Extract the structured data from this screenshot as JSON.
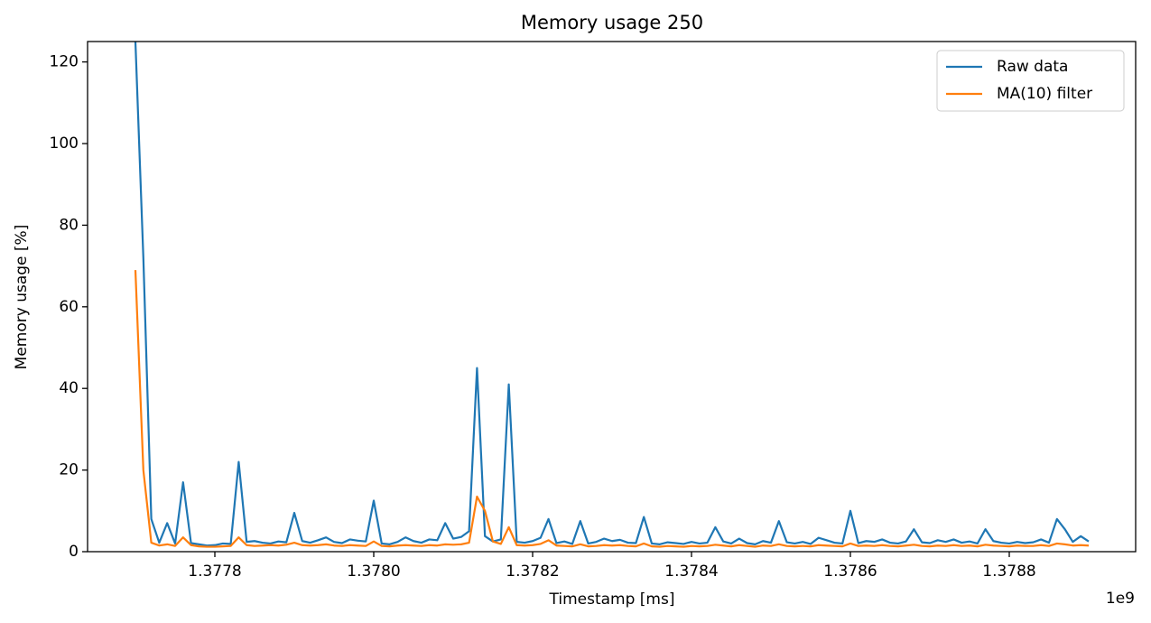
{
  "chart_data": {
    "type": "line",
    "title": "Memory usage 250",
    "xlabel": "Timestamp [ms]",
    "ylabel": "Memory usage [%]",
    "x_offset_label": "1e9",
    "x": [
      1377700000,
      1377710000,
      1377720000,
      1377730000,
      1377740000,
      1377750000,
      1377760000,
      1377770000,
      1377780000,
      1377790000,
      1377800000,
      1377810000,
      1377820000,
      1377830000,
      1377840000,
      1377850000,
      1377860000,
      1377870000,
      1377880000,
      1377890000,
      1377900000,
      1377910000,
      1377920000,
      1377930000,
      1377940000,
      1377950000,
      1377960000,
      1377970000,
      1377980000,
      1377990000,
      1378000000,
      1378010000,
      1378020000,
      1378030000,
      1378040000,
      1378050000,
      1378060000,
      1378070000,
      1378080000,
      1378090000,
      1378100000,
      1378110000,
      1378120000,
      1378130000,
      1378140000,
      1378150000,
      1378160000,
      1378170000,
      1378180000,
      1378190000,
      1378200000,
      1378210000,
      1378220000,
      1378230000,
      1378240000,
      1378250000,
      1378260000,
      1378270000,
      1378280000,
      1378290000,
      1378300000,
      1378310000,
      1378320000,
      1378330000,
      1378340000,
      1378350000,
      1378360000,
      1378370000,
      1378380000,
      1378390000,
      1378400000,
      1378410000,
      1378420000,
      1378430000,
      1378440000,
      1378450000,
      1378460000,
      1378470000,
      1378480000,
      1378490000,
      1378500000,
      1378510000,
      1378520000,
      1378530000,
      1378540000,
      1378550000,
      1378560000,
      1378570000,
      1378580000,
      1378590000,
      1378600000,
      1378610000,
      1378620000,
      1378630000,
      1378640000,
      1378650000,
      1378660000,
      1378670000,
      1378680000,
      1378690000,
      1378700000,
      1378710000,
      1378720000,
      1378730000,
      1378740000,
      1378750000,
      1378760000,
      1378770000,
      1378780000,
      1378790000,
      1378800000,
      1378810000,
      1378820000,
      1378830000,
      1378840000,
      1378850000,
      1378860000,
      1378870000,
      1378880000,
      1378890000,
      1378900000
    ],
    "series": [
      {
        "name": "Raw data",
        "color": "#1f77b4",
        "values": [
          125,
          72,
          8,
          2.2,
          7,
          2.0,
          17,
          2.1,
          1.8,
          1.5,
          1.6,
          2.0,
          1.9,
          22,
          2.4,
          2.6,
          2.2,
          2.0,
          2.5,
          2.3,
          9.5,
          2.6,
          2.2,
          2.8,
          3.5,
          2.4,
          2.1,
          3.0,
          2.7,
          2.5,
          12.5,
          2.0,
          1.8,
          2.4,
          3.5,
          2.6,
          2.2,
          3.0,
          2.8,
          7,
          3.2,
          3.6,
          5,
          45,
          3.8,
          2.5,
          3.0,
          41,
          2.4,
          2.2,
          2.6,
          3.4,
          8,
          2.1,
          2.5,
          1.9,
          7.5,
          2.0,
          2.4,
          3.2,
          2.6,
          2.9,
          2.2,
          2.1,
          8.5,
          2.0,
          1.8,
          2.3,
          2.1,
          1.9,
          2.4,
          2.0,
          2.2,
          6,
          2.5,
          2.0,
          3.2,
          2.1,
          1.8,
          2.6,
          2.2,
          7.5,
          2.3,
          2.0,
          2.4,
          1.9,
          3.4,
          2.8,
          2.2,
          2.0,
          10,
          2.1,
          2.6,
          2.4,
          3.0,
          2.2,
          2.0,
          2.5,
          5.5,
          2.3,
          2.1,
          2.8,
          2.4,
          3.0,
          2.2,
          2.5,
          2.0,
          5.5,
          2.6,
          2.2,
          2.0,
          2.4,
          2.1,
          2.3,
          3.0,
          2.2,
          8,
          5.5,
          2.4,
          3.8,
          2.5
        ]
      },
      {
        "name": "MA(10) filter",
        "color": "#ff7f0e",
        "values": [
          69,
          20,
          2.2,
          1.5,
          1.8,
          1.4,
          3.5,
          1.6,
          1.3,
          1.2,
          1.2,
          1.3,
          1.4,
          3.5,
          1.6,
          1.4,
          1.5,
          1.6,
          1.5,
          1.7,
          2.2,
          1.6,
          1.5,
          1.6,
          1.8,
          1.5,
          1.4,
          1.6,
          1.5,
          1.4,
          2.5,
          1.4,
          1.3,
          1.5,
          1.6,
          1.5,
          1.4,
          1.6,
          1.5,
          1.8,
          1.7,
          1.8,
          2.2,
          13.5,
          10,
          2.5,
          1.9,
          6,
          1.6,
          1.5,
          1.6,
          1.9,
          2.8,
          1.5,
          1.4,
          1.3,
          1.8,
          1.3,
          1.4,
          1.6,
          1.5,
          1.6,
          1.4,
          1.3,
          2,
          1.3,
          1.2,
          1.4,
          1.3,
          1.2,
          1.4,
          1.3,
          1.4,
          1.7,
          1.5,
          1.3,
          1.6,
          1.4,
          1.2,
          1.5,
          1.4,
          1.8,
          1.4,
          1.3,
          1.4,
          1.3,
          1.6,
          1.5,
          1.4,
          1.3,
          2.0,
          1.4,
          1.5,
          1.4,
          1.6,
          1.4,
          1.3,
          1.5,
          1.7,
          1.4,
          1.3,
          1.5,
          1.4,
          1.6,
          1.4,
          1.5,
          1.3,
          1.7,
          1.5,
          1.4,
          1.3,
          1.5,
          1.4,
          1.4,
          1.6,
          1.4,
          2.0,
          1.8,
          1.5,
          1.6,
          1.5
        ]
      }
    ],
    "xlim": [
      1377639773,
      1378959091
    ],
    "ylim": [
      0,
      125
    ],
    "xticks": [
      {
        "value": 1377800000,
        "label": "1.3778"
      },
      {
        "value": 1378000000,
        "label": "1.3780"
      },
      {
        "value": 1378200000,
        "label": "1.3782"
      },
      {
        "value": 1378400000,
        "label": "1.3784"
      },
      {
        "value": 1378600000,
        "label": "1.3786"
      },
      {
        "value": 1378800000,
        "label": "1.3788"
      }
    ],
    "yticks": [
      0,
      20,
      40,
      60,
      80,
      100,
      120
    ],
    "legend": "upper right"
  }
}
